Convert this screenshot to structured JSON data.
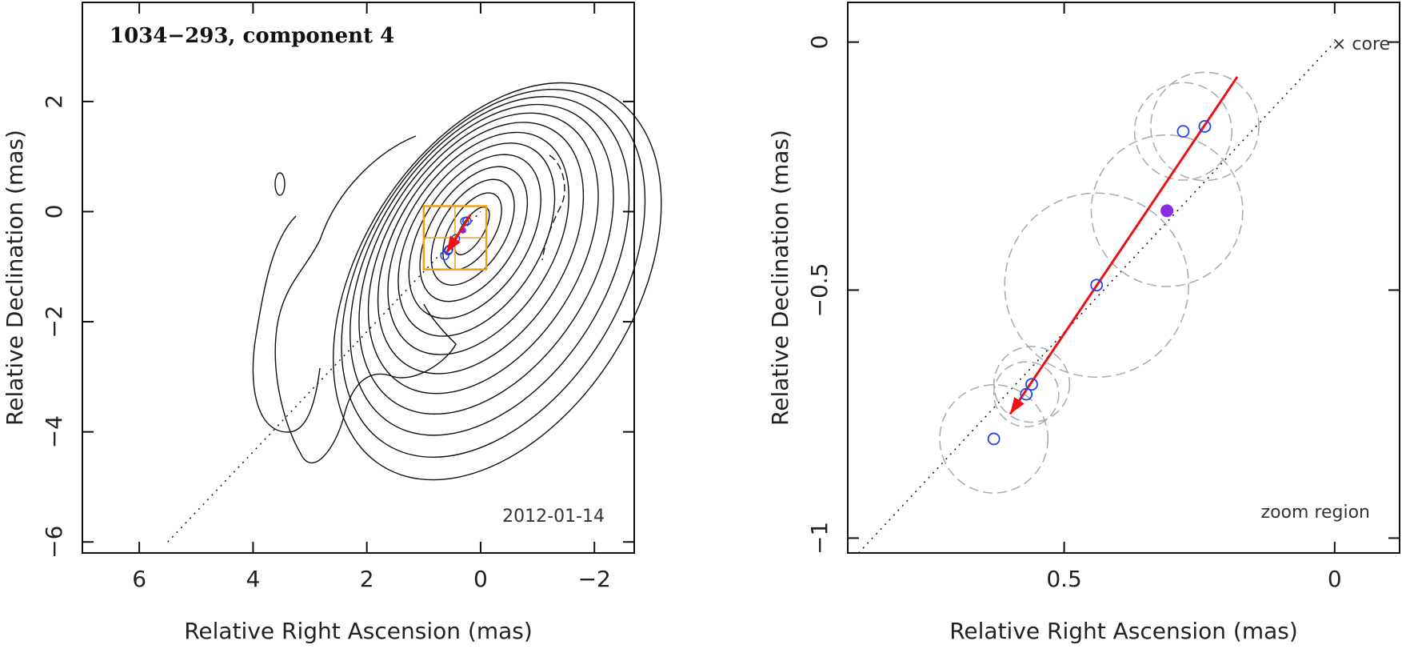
{
  "chart_data": [
    {
      "type": "scatter",
      "panel": "left",
      "title": "1034−293, component 4",
      "epoch": "2012-01-14",
      "xlabel": "Relative Right Ascension (mas)",
      "ylabel": "Relative Declination (mas)",
      "xlim": [
        7.0,
        -2.7
      ],
      "ylim": [
        -6.2,
        3.8
      ],
      "xticks": [
        6,
        4,
        2,
        0,
        -2
      ],
      "xtick_labels": [
        "6",
        "4",
        "2",
        "0",
        "−2"
      ],
      "yticks": [
        -6,
        -4,
        -2,
        0,
        2
      ],
      "ytick_labels": [
        "−6",
        "−4",
        "−2",
        "0",
        "2"
      ],
      "contour_levels": 13,
      "contour_peak": [
        0.15,
        -0.35
      ],
      "contour_angle_deg": 32,
      "zoom_box": {
        "x": [
          1.0,
          -0.1
        ],
        "y": [
          -1.05,
          0.1
        ]
      },
      "jet_axis": [
        [
          5.5,
          -6.0
        ],
        [
          0.0,
          0.0
        ]
      ],
      "positions": {
        "x": [
          0.24,
          0.28,
          0.44,
          0.56,
          0.57,
          0.63
        ],
        "y": [
          -0.17,
          -0.18,
          -0.49,
          -0.69,
          -0.71,
          -0.8
        ]
      },
      "mean_position": {
        "x": 0.31,
        "y": -0.34
      },
      "velocity_arrow": {
        "from": [
          0.18,
          -0.06
        ],
        "to": [
          0.6,
          -0.75
        ]
      }
    },
    {
      "type": "scatter",
      "panel": "right",
      "xlabel": "Relative Right Ascension (mas)",
      "ylabel": "Relative Declination (mas)",
      "xlim": [
        0.9,
        -0.12
      ],
      "ylim": [
        -1.03,
        0.08
      ],
      "xticks": [
        0.5,
        0
      ],
      "xtick_labels": [
        "0.5",
        "0"
      ],
      "yticks": [
        -1,
        -0.5,
        0
      ],
      "ytick_labels": [
        "−1",
        "−0.5",
        "0"
      ],
      "core_label": "× core",
      "note": "zoom region",
      "positions": {
        "x": [
          0.24,
          0.28,
          0.44,
          0.56,
          0.57,
          0.63
        ],
        "y": [
          -0.17,
          -0.18,
          -0.49,
          -0.69,
          -0.71,
          -0.8
        ]
      },
      "error_radii": [
        0.1,
        0.09,
        0.17,
        0.07,
        0.06,
        0.1
      ],
      "mean_position": {
        "x": 0.31,
        "y": -0.34
      },
      "mean_error_radius": 0.14,
      "velocity_arrow": {
        "from": [
          0.18,
          -0.07
        ],
        "to": [
          0.6,
          -0.75
        ]
      },
      "jet_axis": [
        [
          0.88,
          -1.03
        ],
        [
          0.0,
          0.0
        ]
      ]
    }
  ],
  "colors": {
    "contour": "#111111",
    "zoom_box": "#f0a020",
    "arrow": "#ee1111",
    "position_marker": "#2244ee",
    "mean_marker": "#8a2be2",
    "error_circle": "#aaaaaa"
  }
}
